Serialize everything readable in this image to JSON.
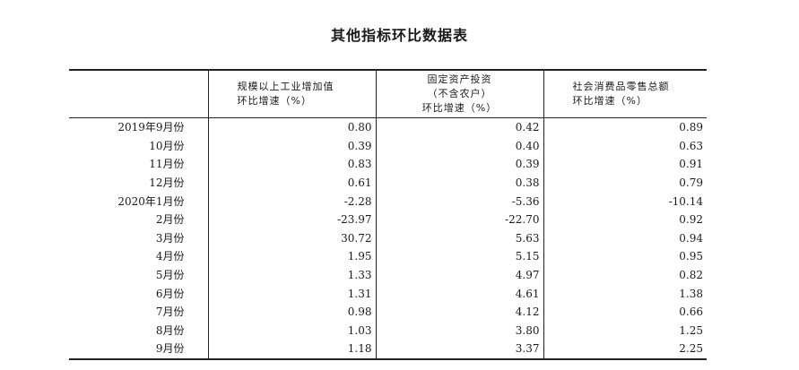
{
  "title": "其他指标环比数据表",
  "columns": [
    "",
    {
      "line1": "规模以上工业增加值",
      "line2": "环比增速（%）"
    },
    {
      "line1": "固定资产投资",
      "line2": "（不含农户）",
      "line3": "环比增速（%）"
    },
    {
      "line1": "社会消费品零售总额",
      "line2": "环比增速（%）"
    }
  ],
  "rows": [
    {
      "period": "2019年9月份",
      "industry": "0.80",
      "investment": "0.42",
      "retail": "0.89"
    },
    {
      "period": "10月份",
      "industry": "0.39",
      "investment": "0.40",
      "retail": "0.63"
    },
    {
      "period": "11月份",
      "industry": "0.83",
      "investment": "0.39",
      "retail": "0.91"
    },
    {
      "period": "12月份",
      "industry": "0.61",
      "investment": "0.38",
      "retail": "0.79"
    },
    {
      "period": "2020年1月份",
      "industry": "-2.28",
      "investment": "-5.36",
      "retail": "-10.14"
    },
    {
      "period": "2月份",
      "industry": "-23.97",
      "investment": "-22.70",
      "retail": "0.92"
    },
    {
      "period": "3月份",
      "industry": "30.72",
      "investment": "5.63",
      "retail": "0.94"
    },
    {
      "period": "4月份",
      "industry": "1.95",
      "investment": "5.15",
      "retail": "0.95"
    },
    {
      "period": "5月份",
      "industry": "1.33",
      "investment": "4.97",
      "retail": "0.82"
    },
    {
      "period": "6月份",
      "industry": "1.31",
      "investment": "4.61",
      "retail": "1.38"
    },
    {
      "period": "7月份",
      "industry": "0.98",
      "investment": "4.12",
      "retail": "0.66"
    },
    {
      "period": "8月份",
      "industry": "1.03",
      "investment": "3.80",
      "retail": "1.25"
    },
    {
      "period": "9月份",
      "industry": "1.18",
      "investment": "3.37",
      "retail": "2.25"
    }
  ]
}
